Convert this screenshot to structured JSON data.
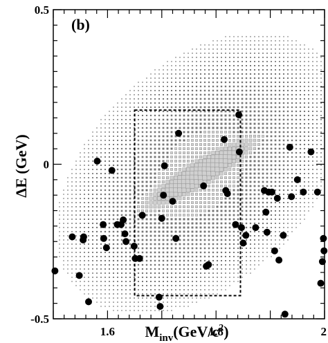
{
  "chart_data": {
    "type": "scatter",
    "panel_label": "(b)",
    "xlabel": "M",
    "xlabel_sub": "inv",
    "xlabel_rest": "(GeV/c",
    "xlabel_sup": "2",
    "xlabel_end": ")",
    "ylabel": "ΔE (GeV)",
    "xlim": [
      1.5,
      2.0
    ],
    "ylim": [
      -0.5,
      0.5
    ],
    "x_ticks": [
      {
        "value": 1.6,
        "label": "1.6"
      },
      {
        "value": 1.8,
        "label": "1.8"
      },
      {
        "value": 2.0,
        "label": "2"
      }
    ],
    "y_ticks": [
      {
        "value": 0.5,
        "label": "0.5"
      },
      {
        "value": 0.0,
        "label": "0"
      },
      {
        "value": -0.5,
        "label": "-0.5"
      }
    ],
    "signal_box": {
      "x": [
        1.65,
        1.845
      ],
      "y": [
        -0.425,
        0.175
      ]
    },
    "signal_distribution": {
      "type": "scatter-box",
      "peak": [
        1.77,
        -0.03
      ],
      "correlation_slope": 1.0
    },
    "colors": {
      "points": "#000000",
      "boxes": "#999999",
      "frame": "#000000"
    },
    "points": [
      {
        "x": 1.503,
        "y": -0.345
      },
      {
        "x": 1.535,
        "y": -0.235
      },
      {
        "x": 1.548,
        "y": -0.36
      },
      {
        "x": 1.555,
        "y": -0.245
      },
      {
        "x": 1.556,
        "y": -0.235
      },
      {
        "x": 1.565,
        "y": -0.445
      },
      {
        "x": 1.581,
        "y": 0.01
      },
      {
        "x": 1.592,
        "y": -0.195
      },
      {
        "x": 1.593,
        "y": -0.24
      },
      {
        "x": 1.598,
        "y": -0.27
      },
      {
        "x": 1.608,
        "y": -0.02
      },
      {
        "x": 1.618,
        "y": -0.195
      },
      {
        "x": 1.625,
        "y": -0.195
      },
      {
        "x": 1.629,
        "y": -0.18
      },
      {
        "x": 1.632,
        "y": -0.225
      },
      {
        "x": 1.634,
        "y": -0.25
      },
      {
        "x": 1.649,
        "y": -0.265
      },
      {
        "x": 1.651,
        "y": -0.305
      },
      {
        "x": 1.659,
        "y": -0.305
      },
      {
        "x": 1.664,
        "y": -0.165
      },
      {
        "x": 1.695,
        "y": -0.43
      },
      {
        "x": 1.697,
        "y": -0.46
      },
      {
        "x": 1.7,
        "y": -0.175
      },
      {
        "x": 1.703,
        "y": -0.1
      },
      {
        "x": 1.705,
        "y": -0.005
      },
      {
        "x": 1.72,
        "y": -0.12
      },
      {
        "x": 1.726,
        "y": -0.24
      },
      {
        "x": 1.731,
        "y": 0.1
      },
      {
        "x": 1.777,
        "y": -0.07
      },
      {
        "x": 1.782,
        "y": -0.33
      },
      {
        "x": 1.786,
        "y": -0.325
      },
      {
        "x": 1.815,
        "y": 0.08
      },
      {
        "x": 1.818,
        "y": -0.085
      },
      {
        "x": 1.821,
        "y": -0.095
      },
      {
        "x": 1.836,
        "y": -0.195
      },
      {
        "x": 1.842,
        "y": 0.16
      },
      {
        "x": 1.843,
        "y": 0.04
      },
      {
        "x": 1.847,
        "y": -0.205
      },
      {
        "x": 1.85,
        "y": -0.255
      },
      {
        "x": 1.855,
        "y": -0.23
      },
      {
        "x": 1.873,
        "y": -0.205
      },
      {
        "x": 1.889,
        "y": -0.085
      },
      {
        "x": 1.892,
        "y": -0.155
      },
      {
        "x": 1.894,
        "y": -0.22
      },
      {
        "x": 1.897,
        "y": -0.09
      },
      {
        "x": 1.903,
        "y": -0.09
      },
      {
        "x": 1.908,
        "y": -0.28
      },
      {
        "x": 1.913,
        "y": -0.11
      },
      {
        "x": 1.916,
        "y": -0.31
      },
      {
        "x": 1.924,
        "y": -0.23
      },
      {
        "x": 1.927,
        "y": -0.485
      },
      {
        "x": 1.936,
        "y": 0.055
      },
      {
        "x": 1.939,
        "y": -0.105
      },
      {
        "x": 1.95,
        "y": -0.05
      },
      {
        "x": 1.961,
        "y": -0.09
      },
      {
        "x": 1.975,
        "y": 0.04
      },
      {
        "x": 1.987,
        "y": -0.09
      },
      {
        "x": 1.993,
        "y": -0.385
      },
      {
        "x": 1.996,
        "y": -0.315
      },
      {
        "x": 1.998,
        "y": -0.24
      },
      {
        "x": 1.999,
        "y": -0.28
      }
    ]
  }
}
